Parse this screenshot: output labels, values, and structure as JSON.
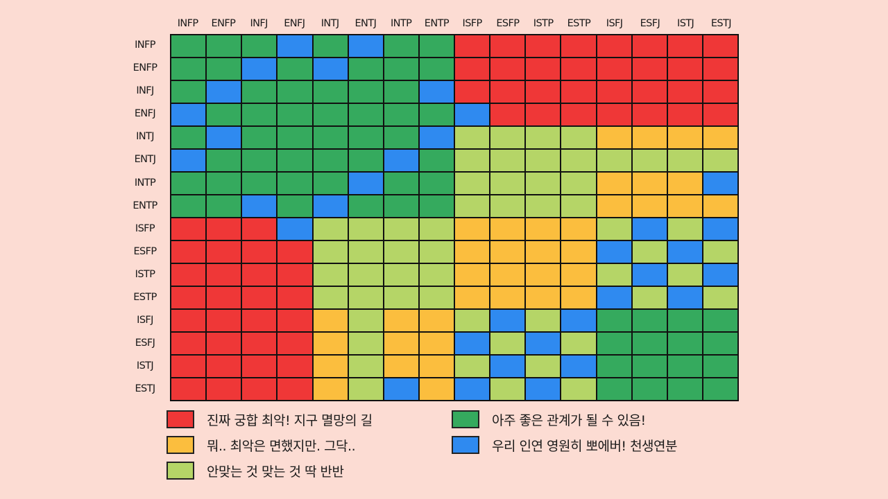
{
  "chart_data": {
    "type": "heatmap",
    "title": "",
    "xlabel": "",
    "ylabel": "",
    "x_labels": [
      "INFP",
      "ENFP",
      "INFJ",
      "ENFJ",
      "INTJ",
      "ENTJ",
      "INTP",
      "ENTP",
      "ISFP",
      "ESFP",
      "ISTP",
      "ESTP",
      "ISFJ",
      "ESFJ",
      "ISTJ",
      "ESTJ"
    ],
    "y_labels": [
      "INFP",
      "ENFP",
      "INFJ",
      "ENFJ",
      "INTJ",
      "ENTJ",
      "INTP",
      "ENTP",
      "ISFP",
      "ESFP",
      "ISTP",
      "ESTP",
      "ISFJ",
      "ESFJ",
      "ISTJ",
      "ESTJ"
    ],
    "categories": {
      "R": {
        "label": "진짜 궁합 최악! 지구 멸망의 길",
        "color": "#ef3737"
      },
      "O": {
        "label": "뭐.. 최악은 면했지만. 그닥..",
        "color": "#fbbe3e"
      },
      "L": {
        "label": "안맞는 것 맞는 것 딱 반반",
        "color": "#b5d567"
      },
      "G": {
        "label": "아주 좋은 관계가 될 수 있음!",
        "color": "#35aa5e"
      },
      "B": {
        "label": "우리 인연 영원히 뽀에버! 천생연분",
        "color": "#2f8af0"
      }
    },
    "matrix": [
      [
        "G",
        "G",
        "G",
        "B",
        "G",
        "B",
        "G",
        "G",
        "R",
        "R",
        "R",
        "R",
        "R",
        "R",
        "R",
        "R"
      ],
      [
        "G",
        "G",
        "B",
        "G",
        "B",
        "G",
        "G",
        "G",
        "R",
        "R",
        "R",
        "R",
        "R",
        "R",
        "R",
        "R"
      ],
      [
        "G",
        "B",
        "G",
        "G",
        "G",
        "G",
        "G",
        "B",
        "R",
        "R",
        "R",
        "R",
        "R",
        "R",
        "R",
        "R"
      ],
      [
        "B",
        "G",
        "G",
        "G",
        "G",
        "G",
        "G",
        "G",
        "B",
        "R",
        "R",
        "R",
        "R",
        "R",
        "R",
        "R"
      ],
      [
        "G",
        "B",
        "G",
        "G",
        "G",
        "G",
        "G",
        "B",
        "L",
        "L",
        "L",
        "L",
        "O",
        "O",
        "O",
        "O"
      ],
      [
        "B",
        "G",
        "G",
        "G",
        "G",
        "G",
        "B",
        "G",
        "L",
        "L",
        "L",
        "L",
        "L",
        "L",
        "L",
        "L"
      ],
      [
        "G",
        "G",
        "G",
        "G",
        "G",
        "B",
        "G",
        "G",
        "L",
        "L",
        "L",
        "L",
        "O",
        "O",
        "O",
        "B"
      ],
      [
        "G",
        "G",
        "B",
        "G",
        "B",
        "G",
        "G",
        "G",
        "L",
        "L",
        "L",
        "L",
        "O",
        "O",
        "O",
        "O"
      ],
      [
        "R",
        "R",
        "R",
        "B",
        "L",
        "L",
        "L",
        "L",
        "O",
        "O",
        "O",
        "O",
        "L",
        "B",
        "L",
        "B"
      ],
      [
        "R",
        "R",
        "R",
        "R",
        "L",
        "L",
        "L",
        "L",
        "O",
        "O",
        "O",
        "O",
        "B",
        "L",
        "B",
        "L"
      ],
      [
        "R",
        "R",
        "R",
        "R",
        "L",
        "L",
        "L",
        "L",
        "O",
        "O",
        "O",
        "O",
        "L",
        "B",
        "L",
        "B"
      ],
      [
        "R",
        "R",
        "R",
        "R",
        "L",
        "L",
        "L",
        "L",
        "O",
        "O",
        "O",
        "O",
        "B",
        "L",
        "B",
        "L"
      ],
      [
        "R",
        "R",
        "R",
        "R",
        "O",
        "L",
        "O",
        "O",
        "L",
        "B",
        "L",
        "B",
        "G",
        "G",
        "G",
        "G"
      ],
      [
        "R",
        "R",
        "R",
        "R",
        "O",
        "L",
        "O",
        "O",
        "B",
        "L",
        "B",
        "L",
        "G",
        "G",
        "G",
        "G"
      ],
      [
        "R",
        "R",
        "R",
        "R",
        "O",
        "L",
        "O",
        "O",
        "L",
        "B",
        "L",
        "B",
        "G",
        "G",
        "G",
        "G"
      ],
      [
        "R",
        "R",
        "R",
        "R",
        "O",
        "L",
        "B",
        "O",
        "B",
        "L",
        "B",
        "L",
        "G",
        "G",
        "G",
        "G"
      ]
    ],
    "legend_position": "bottom"
  },
  "legend": [
    {
      "key": "R",
      "label": "진짜 궁합 최악! 지구 멸망의 길",
      "color": "#ef3737"
    },
    {
      "key": "O",
      "label": "뭐.. 최악은 면했지만. 그닥..",
      "color": "#fbbe3e"
    },
    {
      "key": "L",
      "label": "안맞는 것 맞는 것 딱 반반",
      "color": "#b5d567"
    },
    {
      "key": "G",
      "label": "아주 좋은 관계가 될 수 있음!",
      "color": "#35aa5e"
    },
    {
      "key": "B",
      "label": "우리 인연 영원히 뽀에버! 천생연분",
      "color": "#2f8af0"
    }
  ]
}
